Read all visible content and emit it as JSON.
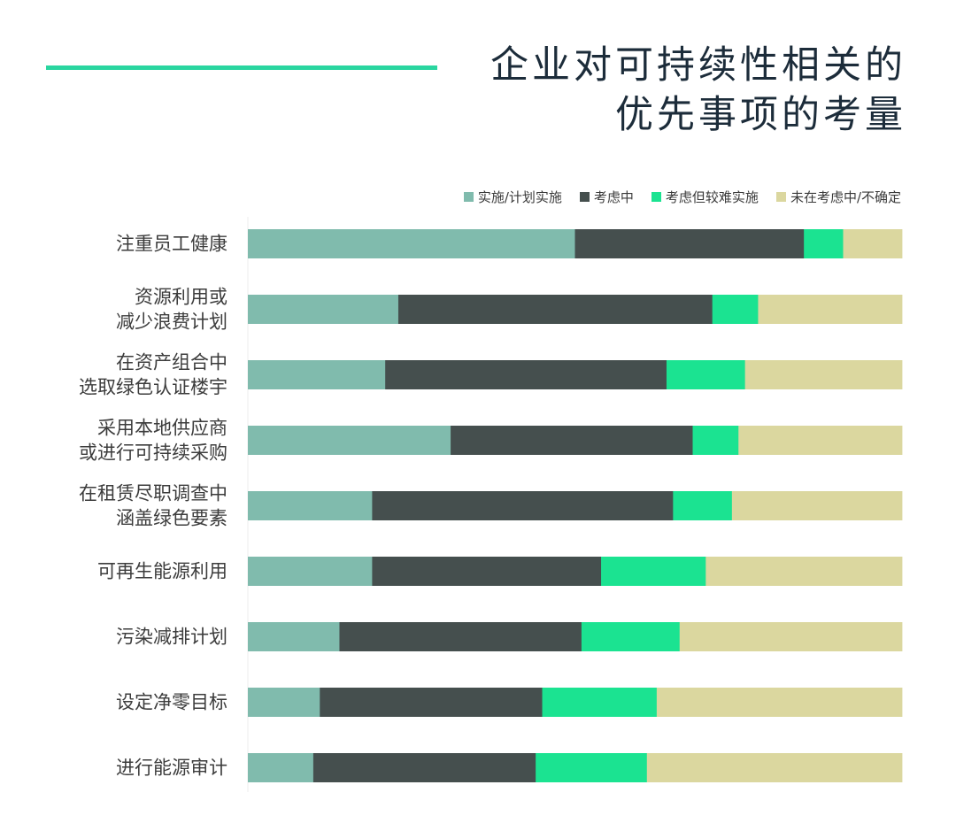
{
  "header": {
    "title_line1": "企业对可持续性相关的",
    "title_line2": "优先事项的考量"
  },
  "colors": {
    "accent_rule": "#2ad6a0",
    "title": "#1c2c3a"
  },
  "chart_data": {
    "type": "bar",
    "orientation": "horizontal",
    "stacked": true,
    "normalized": true,
    "title": "企业对可持续性相关的优先事项的考量",
    "legend_position": "top-right",
    "grid": false,
    "xlim": [
      0,
      100
    ],
    "categories": [
      [
        "注重员工健康"
      ],
      [
        "资源利用或",
        "减少浪费计划"
      ],
      [
        "在资产组合中",
        "选取绿色认证楼宇"
      ],
      [
        "采用本地供应商",
        "或进行可持续采购"
      ],
      [
        "在租赁尽职调查中",
        "涵盖绿色要素"
      ],
      [
        "可再生能源利用"
      ],
      [
        "污染减排计划"
      ],
      [
        "设定净零目标"
      ],
      [
        "进行能源审计"
      ]
    ],
    "series": [
      {
        "name": "实施/计划实施",
        "color": "#80bbad",
        "values": [
          50,
          23,
          21,
          31,
          19,
          19,
          14,
          11,
          10
        ]
      },
      {
        "name": "考虑中",
        "color": "#454f4e",
        "values": [
          35,
          48,
          43,
          37,
          46,
          35,
          37,
          34,
          34
        ]
      },
      {
        "name": "考虑但较难实施",
        "color": "#1be391",
        "values": [
          6,
          7,
          12,
          7,
          9,
          16,
          15,
          17.5,
          17
        ]
      },
      {
        "name": "未在考虑中/不确定",
        "color": "#dbd79f",
        "values": [
          9,
          22,
          24,
          25,
          26,
          30,
          34,
          37.5,
          39
        ]
      }
    ]
  }
}
